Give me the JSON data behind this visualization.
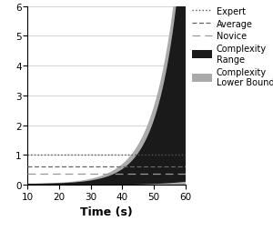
{
  "x_min": 10,
  "x_max": 60,
  "y_min": 0,
  "y_max": 6,
  "xticks": [
    10,
    20,
    30,
    40,
    50,
    60
  ],
  "yticks": [
    0,
    1,
    2,
    3,
    4,
    5,
    6
  ],
  "xlabel": "Time (s)",
  "expert_level": 1.0,
  "average_level": 0.62,
  "novice_level": 0.38,
  "background_color": "#ffffff",
  "complexity_range_color": "#1a1a1a",
  "complexity_lower_color": "#aaaaaa",
  "grid_color": "#cccccc",
  "expert_color": "#555555",
  "average_color": "#666666",
  "novice_color": "#999999",
  "upper_a": 0.0015,
  "upper_b": 0.145,
  "lower_a": 0.0003,
  "lower_b": 0.1,
  "gray_upper_a": 0.003,
  "gray_upper_b": 0.135
}
